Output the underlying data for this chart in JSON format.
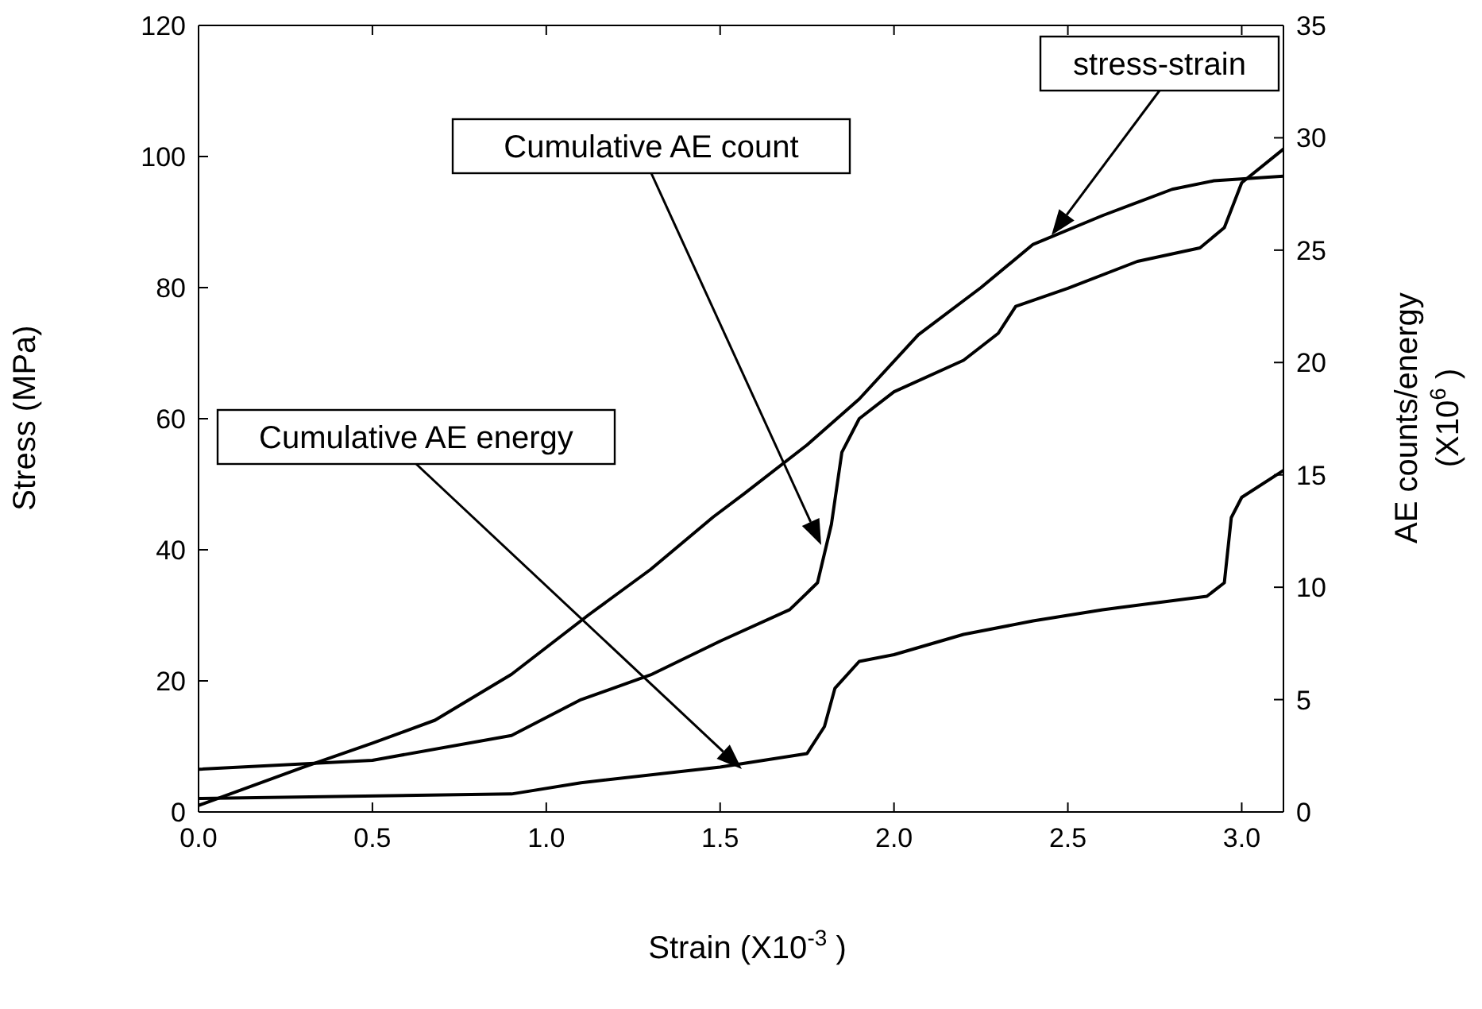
{
  "chart_data": {
    "type": "line",
    "xlabel": "Strain (X10$^{-3}$)",
    "ylabel": "Stress (MPa)",
    "y2label": "AE counts/energy (X10$^{6}$)",
    "xlim": [
      0,
      3.12
    ],
    "xticks": [
      {
        "value": 0,
        "label": "0.0"
      },
      0.5,
      {
        "value": 1,
        "label": "1.0"
      },
      1.5,
      {
        "value": 2,
        "label": "2.0"
      },
      2.5,
      {
        "value": 3,
        "label": "3.0"
      }
    ],
    "ylim": [
      0,
      120
    ],
    "yticks": [
      0,
      20,
      40,
      60,
      80,
      100,
      120
    ],
    "y2lim": [
      0,
      35
    ],
    "y2ticks": [
      0,
      5,
      10,
      15,
      20,
      25,
      30,
      35
    ],
    "legend": false,
    "marker": "none",
    "line_style": "solid",
    "series": [
      {
        "color": "#000000",
        "x": [
          0,
          0.3,
          0.5,
          0.68,
          0.9,
          1.12,
          1.3,
          1.48,
          1.57,
          1.75,
          1.9,
          2.07,
          2.25,
          2.4,
          2.6,
          2.8,
          2.92,
          3.12
        ],
        "values": [
          1,
          6.8,
          10.5,
          14,
          21,
          30,
          37,
          45,
          48.6,
          56,
          63,
          72.8,
          80,
          86.6,
          91,
          95,
          96.3,
          97
        ]
      },
      {
        "color": "#000000",
        "axis": "y2",
        "x": [
          0,
          0.5,
          0.9,
          1.1,
          1.3,
          1.5,
          1.7,
          1.78,
          1.82,
          1.85,
          1.9,
          2.0,
          2.2,
          2.3,
          2.35,
          2.5,
          2.7,
          2.88,
          2.95,
          3.0,
          3.12
        ],
        "values": [
          1.9,
          2.3,
          3.4,
          5,
          6.1,
          7.6,
          9,
          10.2,
          12.8,
          16,
          17.5,
          18.7,
          20.1,
          21.3,
          22.5,
          23.3,
          24.5,
          25.1,
          26,
          28,
          29.5
        ]
      },
      {
        "color": "#000000",
        "axis": "y2",
        "x": [
          0,
          0.9,
          1.1,
          1.5,
          1.75,
          1.8,
          1.83,
          1.9,
          2.0,
          2.2,
          2.4,
          2.6,
          2.9,
          2.95,
          2.97,
          3.0,
          3.12
        ],
        "values": [
          0.6,
          0.8,
          1.3,
          2,
          2.6,
          3.8,
          5.5,
          6.7,
          7,
          7.9,
          8.5,
          9,
          9.6,
          10.2,
          13.1,
          14,
          15.2
        ]
      }
    ],
    "annotations": [
      "stress-strain",
      "Cumulative AE count",
      "Cumulative AE energy"
    ]
  }
}
